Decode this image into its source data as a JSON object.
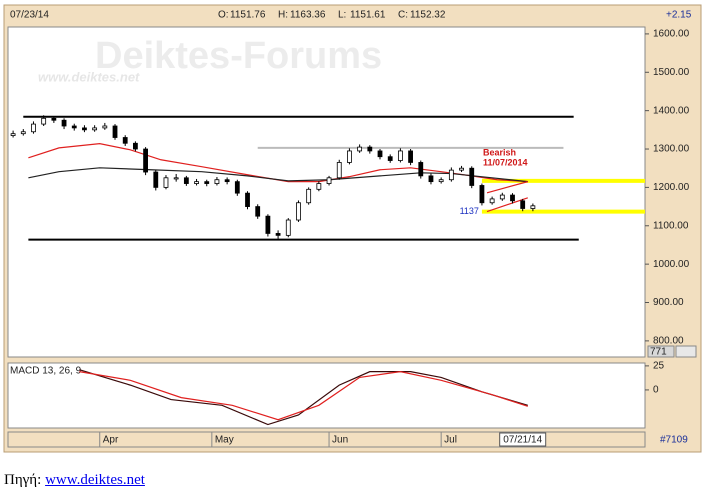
{
  "chart_data": {
    "type": "candlestick",
    "header": {
      "date": "07/23/14",
      "ohlc": [
        {
          "label": "O:",
          "value": 1151.76
        },
        {
          "label": "H:",
          "value": 1163.36
        },
        {
          "label": "L:",
          "value": 1151.61
        },
        {
          "label": "C:",
          "value": 1152.32
        }
      ],
      "change": "+2.15"
    },
    "watermark": [
      "Deiktes-Forums",
      "www.deiktes.net"
    ],
    "x": [
      1,
      3,
      5,
      7,
      9,
      11,
      13,
      15,
      17,
      19,
      21,
      23,
      25,
      27,
      29,
      31,
      33,
      35,
      37,
      39,
      41,
      43,
      45,
      47,
      49,
      51,
      53,
      55,
      57,
      59,
      61,
      63,
      65,
      67,
      69,
      71,
      73,
      75,
      77,
      79,
      81,
      83,
      85,
      87,
      89,
      91,
      93,
      95,
      97,
      99,
      101,
      103
    ],
    "open": [
      1335,
      1340,
      1345,
      1365,
      1380,
      1375,
      1360,
      1355,
      1350,
      1355,
      1360,
      1330,
      1315,
      1300,
      1240,
      1200,
      1222,
      1225,
      1210,
      1215,
      1210,
      1220,
      1215,
      1185,
      1150,
      1125,
      1080,
      1075,
      1115,
      1160,
      1195,
      1210,
      1225,
      1265,
      1295,
      1305,
      1295,
      1280,
      1270,
      1295,
      1265,
      1230,
      1215,
      1220,
      1245,
      1250,
      1205,
      1160,
      1170,
      1180,
      1165,
      1145
    ],
    "high": [
      1348,
      1352,
      1372,
      1388,
      1386,
      1380,
      1366,
      1362,
      1362,
      1368,
      1365,
      1336,
      1320,
      1305,
      1245,
      1232,
      1235,
      1230,
      1222,
      1220,
      1227,
      1226,
      1220,
      1190,
      1156,
      1130,
      1088,
      1120,
      1166,
      1200,
      1216,
      1230,
      1272,
      1302,
      1312,
      1310,
      1300,
      1286,
      1302,
      1300,
      1270,
      1236,
      1226,
      1252,
      1256,
      1255,
      1210,
      1176,
      1186,
      1185,
      1170,
      1158
    ],
    "low": [
      1330,
      1335,
      1340,
      1360,
      1368,
      1352,
      1348,
      1344,
      1345,
      1350,
      1324,
      1308,
      1294,
      1232,
      1192,
      1195,
      1215,
      1204,
      1205,
      1203,
      1205,
      1208,
      1178,
      1143,
      1118,
      1072,
      1066,
      1070,
      1110,
      1155,
      1190,
      1205,
      1220,
      1260,
      1290,
      1288,
      1273,
      1264,
      1265,
      1258,
      1223,
      1208,
      1210,
      1215,
      1240,
      1198,
      1153,
      1155,
      1165,
      1158,
      1138,
      1138
    ],
    "close": [
      1340,
      1345,
      1365,
      1380,
      1375,
      1360,
      1355,
      1350,
      1355,
      1360,
      1330,
      1315,
      1300,
      1240,
      1200,
      1225,
      1225,
      1210,
      1215,
      1210,
      1220,
      1215,
      1185,
      1150,
      1125,
      1080,
      1075,
      1115,
      1160,
      1195,
      1210,
      1225,
      1265,
      1295,
      1305,
      1295,
      1280,
      1270,
      1295,
      1265,
      1230,
      1215,
      1220,
      1245,
      1250,
      1205,
      1160,
      1170,
      1180,
      1165,
      1145,
      1152
    ],
    "xlim": [
      0,
      125
    ],
    "xticks": [
      {
        "value": 18,
        "label": "Apr"
      },
      {
        "value": 40,
        "label": "May"
      },
      {
        "value": 63,
        "label": "Jun"
      },
      {
        "value": 85,
        "label": "Jul"
      }
    ],
    "cursor": {
      "value": 101,
      "label": "07/21/14"
    },
    "bar_count": "#7109",
    "ylim": [
      758,
      1618
    ],
    "yticks": [
      {
        "value": 1600,
        "label": "1600.00"
      },
      {
        "value": 1500,
        "label": "1500.00"
      },
      {
        "value": 1400,
        "label": "1400.00"
      },
      {
        "value": 1300,
        "label": "1300.00"
      },
      {
        "value": 1200,
        "label": "1200.00"
      },
      {
        "value": 1100,
        "label": "1100.00"
      },
      {
        "value": 1000,
        "label": "1000.00"
      },
      {
        "value": 900,
        "label": "900.00"
      },
      {
        "value": 800,
        "label": "800.00"
      }
    ],
    "last_marker": "771",
    "moving_averages": [
      {
        "color": "#e0201f",
        "x": [
          4,
          10,
          18,
          24,
          30,
          38,
          47,
          55,
          61,
          67,
          73,
          79,
          85,
          91,
          96,
          102
        ],
        "values": [
          1277,
          1303,
          1314,
          1298,
          1272,
          1254,
          1233,
          1215,
          1215,
          1228,
          1246,
          1251,
          1241,
          1230,
          1220,
          1215
        ]
      },
      {
        "color": "#222222",
        "x": [
          4,
          10,
          18,
          28,
          38,
          47,
          55,
          63,
          73,
          81,
          87,
          95,
          102
        ],
        "values": [
          1225,
          1241,
          1251,
          1246,
          1241,
          1230,
          1217,
          1220,
          1230,
          1238,
          1236,
          1225,
          1215
        ]
      }
    ],
    "levels": [
      {
        "value": 1384,
        "x": [
          3,
          111
        ],
        "color": "#000000"
      },
      {
        "value": 1064,
        "x": [
          4,
          112
        ],
        "color": "#000000"
      },
      {
        "value": 1303,
        "x": [
          49,
          109
        ],
        "color": "#bbbbbb"
      },
      {
        "value": 1217,
        "x": [
          93,
          125
        ],
        "color": "#ffff00"
      },
      {
        "value": 1137,
        "x": [
          93,
          125
        ],
        "color": "#ffff00",
        "label": "1137"
      }
    ],
    "trendlines": [
      {
        "color": "#e0201f",
        "x": [
          94,
          102
        ],
        "values": [
          1186,
          1215
        ]
      },
      {
        "color": "#e0201f",
        "x": [
          94,
          102
        ],
        "values": [
          1137,
          1173
        ]
      }
    ],
    "annotation": [
      "Bearish",
      "11/07/2014"
    ],
    "macd": {
      "title": "MACD 13, 26, 9",
      "ylim": [
        -39.6,
        28
      ],
      "yticks": [
        25,
        0
      ],
      "series": [
        {
          "color": "#3a0a0a",
          "x": [
            14,
            24,
            32,
            42,
            51,
            57,
            65,
            71,
            79,
            85,
            93,
            102
          ],
          "values": [
            21,
            5,
            -10,
            -16,
            -36,
            -26,
            5,
            19,
            19,
            13,
            -2,
            -16
          ]
        },
        {
          "color": "#e0201f",
          "x": [
            14,
            24,
            34,
            44,
            53,
            61,
            69,
            77,
            85,
            95,
            102
          ],
          "values": [
            19,
            10,
            -8,
            -16,
            -31,
            -16,
            13,
            19,
            10,
            -5,
            -17
          ]
        }
      ]
    }
  },
  "footer": {
    "label": "Πηγή:",
    "link": "www.deiktes.net"
  }
}
